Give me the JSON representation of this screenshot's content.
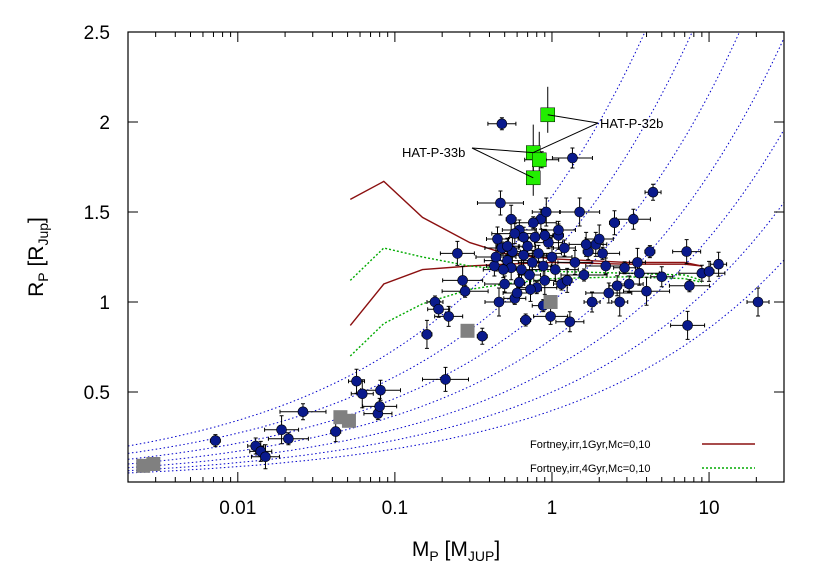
{
  "chart_data": {
    "type": "scatter",
    "title": "",
    "xscale": "log",
    "xlim": [
      0.002,
      30
    ],
    "ylim": [
      0,
      2.5
    ],
    "x_tick_values": [
      0.01,
      0.1,
      1,
      10
    ],
    "x_tick_labels": [
      "0.01",
      "0.1",
      "1",
      "10"
    ],
    "y_tick_values": [
      0.5,
      1,
      1.5,
      2,
      2.5
    ],
    "y_tick_labels": [
      "0.5",
      "1",
      "1.5",
      "2",
      "2.5"
    ],
    "xlabel": {
      "main": "M",
      "sub": "P",
      "unit_open": " [M",
      "unit_sub": "JUP",
      "unit_close": "]"
    },
    "ylabel": {
      "main": "R",
      "sub": "P",
      "unit_open": " [R",
      "unit_sub": "Jup",
      "unit_close": "]"
    },
    "grid": false,
    "isodensity_curves": {
      "style": "dotted",
      "color": "#0000cc",
      "densities_rel_jup": [
        0.25,
        0.5,
        1,
        2,
        4,
        8,
        16
      ]
    },
    "series": [
      {
        "name": "",
        "marker": "circle",
        "color": "#0a1a8c",
        "points": [
          [
            0.0072,
            0.23
          ],
          [
            0.013,
            0.2
          ],
          [
            0.014,
            0.17
          ],
          [
            0.015,
            0.14
          ],
          [
            0.019,
            0.29
          ],
          [
            0.021,
            0.24
          ],
          [
            0.026,
            0.39
          ],
          [
            0.042,
            0.28
          ],
          [
            0.057,
            0.56
          ],
          [
            0.062,
            0.49
          ],
          [
            0.078,
            0.38
          ],
          [
            0.08,
            0.42
          ],
          [
            0.081,
            0.51
          ],
          [
            0.21,
            0.57
          ],
          [
            0.16,
            0.82
          ],
          [
            0.18,
            1.0
          ],
          [
            0.19,
            0.96
          ],
          [
            0.22,
            0.92
          ],
          [
            0.25,
            1.27
          ],
          [
            0.27,
            1.12
          ],
          [
            0.28,
            1.06
          ],
          [
            0.36,
            0.81
          ],
          [
            0.43,
            1.2
          ],
          [
            0.45,
            1.35
          ],
          [
            0.46,
            1.0
          ],
          [
            0.48,
            1.3
          ],
          [
            0.5,
            1.1
          ],
          [
            0.52,
            1.23
          ],
          [
            0.55,
            1.19
          ],
          [
            0.56,
            1.28
          ],
          [
            0.58,
            1.02
          ],
          [
            0.6,
            1.05
          ],
          [
            0.62,
            1.4
          ],
          [
            0.64,
            1.18
          ],
          [
            0.66,
            1.26
          ],
          [
            0.68,
            0.9
          ],
          [
            0.7,
            1.31
          ],
          [
            0.72,
            1.15
          ],
          [
            0.75,
            1.22
          ],
          [
            0.78,
            1.36
          ],
          [
            0.8,
            1.08
          ],
          [
            0.82,
            1.27
          ],
          [
            0.85,
            1.46
          ],
          [
            0.88,
            1.2
          ],
          [
            0.9,
            1.12
          ],
          [
            0.95,
            1.33
          ],
          [
            0.98,
            0.92
          ],
          [
            1.0,
            1.25
          ],
          [
            1.05,
            1.18
          ],
          [
            1.1,
            1.37
          ],
          [
            1.15,
            1.1
          ],
          [
            1.2,
            1.3
          ],
          [
            1.3,
            0.89
          ],
          [
            1.4,
            1.22
          ],
          [
            1.5,
            1.5
          ],
          [
            1.6,
            1.15
          ],
          [
            1.7,
            1.28
          ],
          [
            1.8,
            1.0
          ],
          [
            1.9,
            1.32
          ],
          [
            2.0,
            1.35
          ],
          [
            2.1,
            1.27
          ],
          [
            2.2,
            1.2
          ],
          [
            2.3,
            1.05
          ],
          [
            2.5,
            1.44
          ],
          [
            2.7,
            1.0
          ],
          [
            2.9,
            1.19
          ],
          [
            3.1,
            1.1
          ],
          [
            3.3,
            1.46
          ],
          [
            3.6,
            1.16
          ],
          [
            4.0,
            1.06
          ],
          [
            4.2,
            1.28
          ],
          [
            4.4,
            1.61
          ],
          [
            5.0,
            1.14
          ],
          [
            7.2,
            1.28
          ],
          [
            7.3,
            0.87
          ],
          [
            7.5,
            1.09
          ],
          [
            9.0,
            1.16
          ],
          [
            10.0,
            1.17
          ],
          [
            11.5,
            1.21
          ],
          [
            20.5,
            1.0
          ],
          [
            0.48,
            1.99
          ],
          [
            0.86,
            1.79
          ],
          [
            1.35,
            1.8
          ],
          [
            0.47,
            1.55
          ],
          [
            0.55,
            1.46
          ],
          [
            0.9,
            1.37
          ],
          [
            0.52,
            1.31
          ],
          [
            0.66,
            1.36
          ],
          [
            1.65,
            1.32
          ],
          [
            0.44,
            1.25
          ],
          [
            0.76,
            1.44
          ],
          [
            0.62,
            1.11
          ],
          [
            2.6,
            1.09
          ],
          [
            0.73,
            1.07
          ],
          [
            0.92,
            1.5
          ],
          [
            1.1,
            1.4
          ],
          [
            0.49,
            1.18
          ],
          [
            0.58,
            1.38
          ],
          [
            1.25,
            1.12
          ],
          [
            3.5,
            1.22
          ],
          [
            0.88,
            0.98
          ]
        ]
      },
      {
        "name": "",
        "marker": "square",
        "color": "#808080",
        "points": [
          [
            0.0025,
            0.09
          ],
          [
            0.0029,
            0.1
          ],
          [
            0.045,
            0.36
          ],
          [
            0.051,
            0.34
          ],
          [
            0.29,
            0.84
          ],
          [
            0.98,
            1.0
          ]
        ]
      },
      {
        "name": "",
        "marker": "square",
        "color": "#22ee00",
        "points": [
          [
            0.94,
            2.04
          ],
          [
            0.76,
            1.83
          ],
          [
            0.83,
            1.79
          ],
          [
            0.76,
            1.69
          ]
        ]
      }
    ],
    "model_curves": [
      {
        "name": "Fortney,irr,1Gyr,Mc=0,10",
        "color": "#8b1010",
        "style": "solid",
        "lines": [
          [
            [
              0.052,
              1.57
            ],
            [
              0.085,
              1.67
            ],
            [
              0.15,
              1.47
            ],
            [
              0.3,
              1.33
            ],
            [
              0.5,
              1.27
            ],
            [
              1,
              1.24
            ],
            [
              3,
              1.22
            ],
            [
              7,
              1.22
            ],
            [
              9,
              1.2
            ]
          ],
          [
            [
              0.052,
              0.87
            ],
            [
              0.085,
              1.1
            ],
            [
              0.15,
              1.18
            ],
            [
              0.3,
              1.2
            ],
            [
              0.5,
              1.21
            ],
            [
              1,
              1.22
            ],
            [
              3,
              1.21
            ],
            [
              7,
              1.21
            ],
            [
              9,
              1.2
            ]
          ]
        ]
      },
      {
        "name": "Fortney,irr,4Gyr,Mc=0,10",
        "color": "#00aa00",
        "style": "dotted",
        "lines": [
          [
            [
              0.052,
              1.12
            ],
            [
              0.085,
              1.3
            ],
            [
              0.15,
              1.25
            ],
            [
              0.3,
              1.2
            ],
            [
              0.5,
              1.18
            ],
            [
              1,
              1.17
            ],
            [
              3,
              1.16
            ],
            [
              7,
              1.15
            ],
            [
              9,
              1.12
            ]
          ],
          [
            [
              0.052,
              0.7
            ],
            [
              0.085,
              0.88
            ],
            [
              0.15,
              0.99
            ],
            [
              0.3,
              1.07
            ],
            [
              0.5,
              1.1
            ],
            [
              1,
              1.13
            ],
            [
              3,
              1.14
            ],
            [
              7,
              1.13
            ],
            [
              9,
              1.11
            ]
          ]
        ]
      }
    ],
    "annotations": [
      {
        "text": "HAT-P-32b",
        "point_index_series": 2,
        "targets": [
          0,
          1
        ]
      },
      {
        "text": "HAT-P-33b",
        "point_index_series": 2,
        "targets": [
          1,
          3
        ]
      }
    ],
    "legend": {
      "placement": "bottom-right",
      "entries": [
        {
          "label": "Fortney,irr,1Gyr,Mc=0,10",
          "color": "#8b1010",
          "style": "solid"
        },
        {
          "label": "Fortney,irr,4Gyr,Mc=0,10",
          "color": "#00aa00",
          "style": "dotted"
        }
      ]
    }
  }
}
